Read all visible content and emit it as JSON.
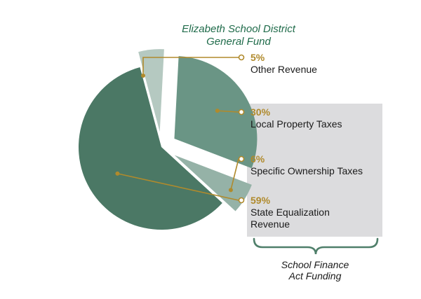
{
  "chart_data": {
    "type": "pie",
    "title": [
      "Elizabeth School District",
      "General Fund"
    ],
    "slices": [
      {
        "percent_label": "5%",
        "value": 5,
        "label_lines": [
          "Other Revenue"
        ],
        "color": "#b5c9c1",
        "exploded": true
      },
      {
        "percent_label": "30%",
        "value": 30,
        "label_lines": [
          "Local Property Taxes"
        ],
        "color": "#6a9585",
        "exploded": true
      },
      {
        "percent_label": "6%",
        "value": 6,
        "label_lines": [
          "Specific Ownership Taxes"
        ],
        "color": "#95b2a7",
        "exploded": true
      },
      {
        "percent_label": "59%",
        "value": 59,
        "label_lines": [
          "State Equalization",
          "Revenue"
        ],
        "color": "#4b7865",
        "exploded": false
      }
    ],
    "group_annotation": {
      "label_lines": [
        "School Finance",
        "Act Funding"
      ],
      "members": [
        "30%",
        "6%",
        "59%"
      ]
    }
  },
  "colors": {
    "title": "#1f6b4a",
    "accent": "#b08a2c",
    "label_text": "#1a1a1a",
    "group_box": "#dcdcde",
    "brace": "#4f7f6a"
  }
}
